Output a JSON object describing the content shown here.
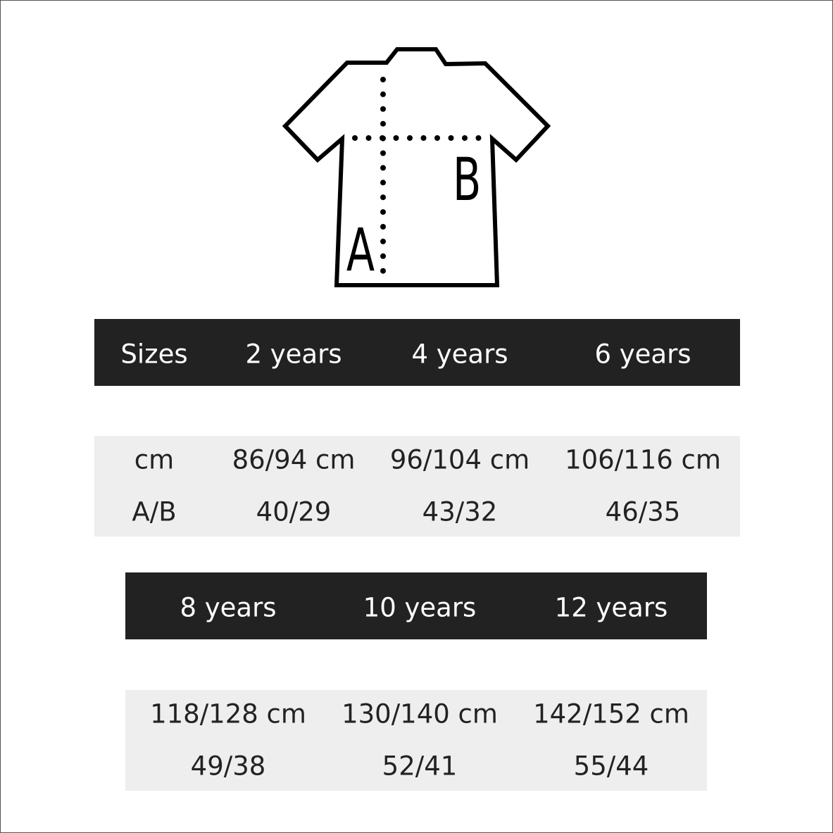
{
  "diagram": {
    "labels": {
      "length": "A",
      "width": "B"
    },
    "icon": "t-shirt-icon"
  },
  "table1": {
    "headers": [
      "Sizes",
      "2 years",
      "4 years",
      "6 years"
    ],
    "rows": [
      [
        "cm",
        "86/94 cm",
        "96/104 cm",
        "106/116 cm"
      ],
      [
        "A/B",
        "40/29",
        "43/32",
        "46/35"
      ]
    ]
  },
  "table2": {
    "headers": [
      "8 years",
      "10 years",
      "12 years"
    ],
    "rows": [
      [
        "118/128 cm",
        "130/140 cm",
        "142/152 cm"
      ],
      [
        "49/38",
        "52/41",
        "55/44"
      ]
    ]
  },
  "colors": {
    "header_bg": "#222222",
    "row_bg": "#eeeeee",
    "header_text": "#ffffff",
    "row_text": "#222222"
  }
}
